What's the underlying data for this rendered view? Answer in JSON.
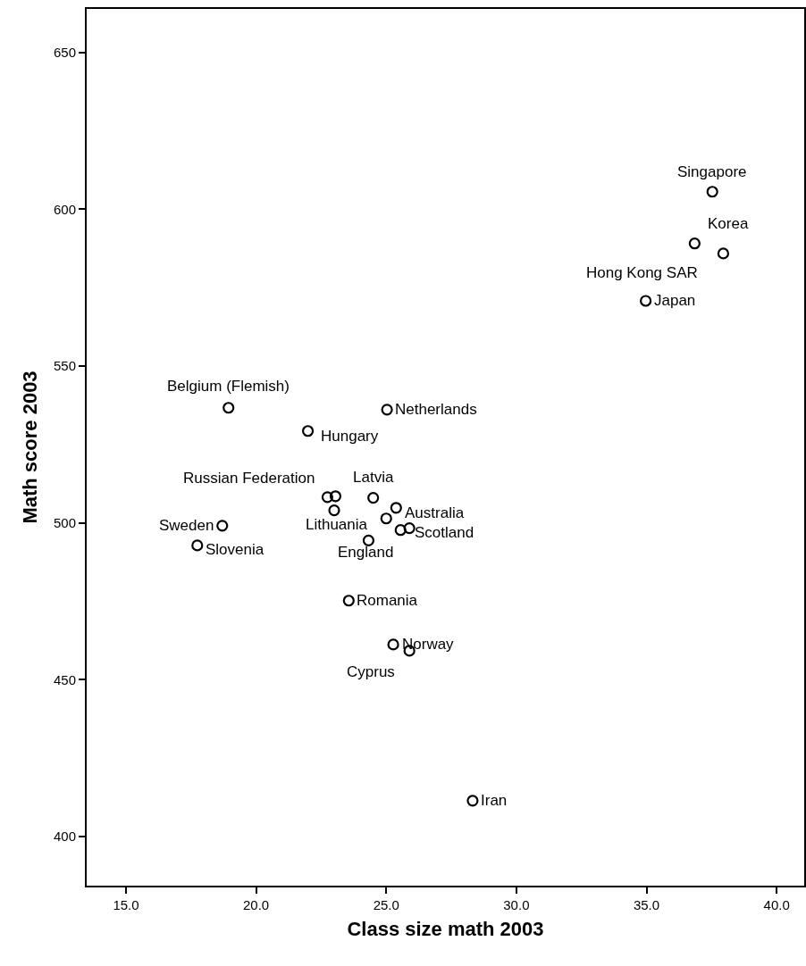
{
  "chart_data": {
    "type": "scatter",
    "xlabel": "Class size math 2003",
    "ylabel": "Math score 2003",
    "x": [
      37.53,
      36.85,
      37.95,
      34.97,
      18.94,
      25.03,
      21.99,
      22.74,
      23.05,
      23.0,
      24.5,
      25.38,
      25.0,
      25.55,
      25.89,
      24.32,
      18.7,
      17.74,
      23.56,
      25.27,
      25.89,
      28.32
    ],
    "series": [
      {
        "color": "#000000",
        "values": [
          605.6,
          589.1,
          585.9,
          570.8,
          536.7,
          536.1,
          529.3,
          508.2,
          508.5,
          504.0,
          508.0,
          504.8,
          501.4,
          497.7,
          498.3,
          494.4,
          499.1,
          492.8,
          475.2,
          461.2,
          459.2,
          411.4
        ]
      }
    ],
    "annotations": [
      {
        "text": "Singapore",
        "x": 37.53,
        "y": 605.6
      },
      {
        "text": "Korea",
        "x": 36.85,
        "y": 589.1
      },
      {
        "text": "Hong Kong SAR",
        "x": 37.95,
        "y": 585.9
      },
      {
        "text": "Japan",
        "x": 34.97,
        "y": 570.8
      },
      {
        "text": "Belgium (Flemish)",
        "x": 18.94,
        "y": 536.7
      },
      {
        "text": "Netherlands",
        "x": 25.03,
        "y": 536.1
      },
      {
        "text": "Hungary",
        "x": 21.99,
        "y": 529.3
      },
      {
        "text": "Russian Federation",
        "x": 22.74,
        "y": 508.2
      },
      {
        "text": "Latvia",
        "x": 24.5,
        "y": 508.0
      },
      {
        "text": "Lithuania",
        "x": 23.0,
        "y": 504.0
      },
      {
        "text": "Australia",
        "x": 25.38,
        "y": 504.8
      },
      {
        "text": "Scotland",
        "x": 25.89,
        "y": 498.3
      },
      {
        "text": "England",
        "x": 24.32,
        "y": 494.4
      },
      {
        "text": "Sweden",
        "x": 18.7,
        "y": 499.1
      },
      {
        "text": "Slovenia",
        "x": 17.74,
        "y": 492.8
      },
      {
        "text": "Romania",
        "x": 23.56,
        "y": 475.2
      },
      {
        "text": "Norway",
        "x": 25.27,
        "y": 461.2
      },
      {
        "text": "Cyprus",
        "x": 25.89,
        "y": 459.2
      },
      {
        "text": "Iran",
        "x": 28.32,
        "y": 411.4
      }
    ],
    "xlim": [
      13.49,
      41.06
    ],
    "ylim": [
      384.3,
      663.9
    ],
    "xticks": [
      {
        "value": 15,
        "label": "15.0"
      },
      {
        "value": 20,
        "label": "20.0"
      },
      {
        "value": 25,
        "label": "25.0"
      },
      {
        "value": 30,
        "label": "30.0"
      },
      {
        "value": 35,
        "label": "35.0"
      },
      {
        "value": 40,
        "label": "40.0"
      }
    ],
    "yticks": [
      400,
      450,
      500,
      550,
      600,
      650
    ],
    "marker": "circle",
    "grid": false
  }
}
